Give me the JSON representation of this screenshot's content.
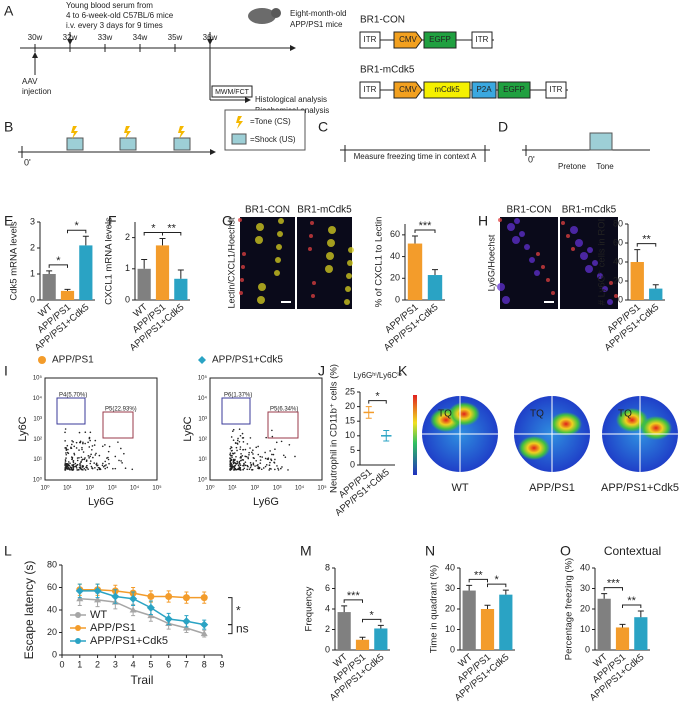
{
  "panel_labels": [
    "A",
    "B",
    "C",
    "D",
    "E",
    "F",
    "G",
    "H",
    "I",
    "J",
    "K",
    "L",
    "M",
    "N",
    "O"
  ],
  "timeline": {
    "serum": [
      "Young blood serum from",
      "4 to 6-week-old C57BL/6 mice",
      "i.v. every 3 days for 9 times"
    ],
    "mice": [
      "Eight-month-old",
      "APP/PS1 mice"
    ],
    "weeks": [
      "30w",
      "32w",
      "33w",
      "34w",
      "35w",
      "36w"
    ],
    "aav": [
      "AAV",
      "injection"
    ],
    "test": "MWM/FCT",
    "analysis": [
      "Histological analysis",
      "Biochemical analysis"
    ]
  },
  "constructs": [
    {
      "name": "BR1-CON",
      "parts": [
        "ITR",
        "CMV",
        "EGFP",
        "ITR"
      ]
    },
    {
      "name": "BR1-mCdk5",
      "parts": [
        "ITR",
        "CMV",
        "mCdk5",
        "P2A",
        "EGFP",
        "ITR"
      ]
    }
  ],
  "fear": {
    "start": "0'",
    "legend": [
      "=Tone (CS)",
      "=Shock (US)"
    ],
    "context": "Measure freezing time in context A",
    "phases": [
      "Pretone",
      "Tone"
    ]
  },
  "images": {
    "g": {
      "columns": [
        "BR1-CON",
        "BR1-mCdk5"
      ],
      "stain": "Lectin/CXCL1/Hoechst"
    },
    "h": {
      "columns": [
        "BR1-CON",
        "BR1-mCdk5"
      ],
      "stain": "Ly6G/Hoechst"
    }
  },
  "flow": {
    "legend": [
      "APP/PS1",
      "APP/PS1+Cdk5"
    ],
    "gates": [
      [
        "P4(5.70%)",
        "P5(22.93%)"
      ],
      [
        "P6(1.37%)",
        "P5(6.34%)"
      ]
    ],
    "ylabel": "Ly6C",
    "xlabel": "Ly6G",
    "ticks": [
      "10⁰",
      "10¹",
      "10²",
      "10³",
      "10⁴",
      "10⁵"
    ]
  },
  "maze": {
    "quadrant": "TQ",
    "groups": [
      "WT",
      "APP/PS1",
      "APP/PS1+Cdk5"
    ]
  },
  "chart_data": [
    {
      "type": "bar",
      "ylabel": "Cdk5 mRNA levels",
      "categories": [
        "WT",
        "APP/PS1",
        "APP/PS1+Cdk5"
      ],
      "values": [
        1.0,
        0.35,
        2.1
      ],
      "errors": [
        0.12,
        0.06,
        0.35
      ],
      "colors": [
        "#808080",
        "#f39c2b",
        "#2aa3c4"
      ],
      "ylim": [
        0,
        3
      ],
      "yticks": [
        0,
        1,
        2,
        3
      ],
      "significance": [
        "*",
        "*"
      ]
    },
    {
      "type": "bar",
      "ylabel": "CXCL1 mRNA levels",
      "categories": [
        "WT",
        "APP/PS1",
        "APP/PS1+Cdk5"
      ],
      "values": [
        1.0,
        1.75,
        0.68
      ],
      "errors": [
        0.3,
        0.22,
        0.28
      ],
      "colors": [
        "#808080",
        "#f39c2b",
        "#2aa3c4"
      ],
      "ylim": [
        0,
        2.5
      ],
      "yticks": [
        0,
        1,
        2
      ],
      "significance": [
        "*",
        "**"
      ]
    },
    {
      "type": "bar",
      "ylabel": "% of CXCL1 to Lectin",
      "categories": [
        "APP/PS1",
        "APP/PS1+Cdk5"
      ],
      "values": [
        52,
        23
      ],
      "errors": [
        7,
        5
      ],
      "colors": [
        "#f39c2b",
        "#2aa3c4"
      ],
      "ylim": [
        0,
        70
      ],
      "yticks": [
        0,
        20,
        40,
        60
      ],
      "significance": [
        "***"
      ]
    },
    {
      "type": "bar",
      "ylabel": "# Ly6G⁺ cells in ROI",
      "categories": [
        "APP/PS1",
        "APP/PS1+Cdk5"
      ],
      "values": [
        40,
        12
      ],
      "errors": [
        13,
        4
      ],
      "colors": [
        "#f39c2b",
        "#2aa3c4"
      ],
      "ylim": [
        0,
        80
      ],
      "yticks": [
        0,
        20,
        40,
        60,
        80
      ],
      "significance": [
        "**"
      ]
    },
    {
      "type": "dot",
      "title": "Ly6Gʰⁱ/Ly6Cˡᵒ",
      "ylabel": "Neutrophil in CD11b⁺ cells (%)",
      "categories": [
        "APP/PS1",
        "APP/PS1+Cdk5"
      ],
      "values": [
        18,
        10
      ],
      "errors": [
        2,
        1.8
      ],
      "colors": [
        "#f39c2b",
        "#2aa3c4"
      ],
      "ylim": [
        0,
        25
      ],
      "yticks": [
        0,
        5,
        10,
        15,
        20,
        25
      ],
      "significance": [
        "*"
      ]
    },
    {
      "type": "line",
      "ylabel": "Escape latency (s)",
      "xlabel": "Trail",
      "x": [
        1,
        2,
        3,
        4,
        5,
        6,
        7,
        8
      ],
      "xlim": [
        0,
        9
      ],
      "xticks": [
        0,
        1,
        2,
        3,
        4,
        5,
        6,
        7,
        8,
        9
      ],
      "ylim": [
        0,
        80
      ],
      "yticks": [
        0,
        20,
        40,
        60,
        80
      ],
      "series": [
        {
          "name": "WT",
          "color": "#a6a6a6",
          "values": [
            50,
            49,
            47,
            40,
            35,
            28,
            24,
            19
          ],
          "errors": [
            6,
            6,
            6,
            5,
            5,
            5,
            4,
            3
          ]
        },
        {
          "name": "APP/PS1",
          "color": "#f39c2b",
          "values": [
            58,
            58,
            57,
            55,
            52,
            52,
            51,
            51
          ],
          "errors": [
            5,
            5,
            5,
            5,
            5,
            5,
            5,
            5
          ]
        },
        {
          "name": "APP/PS1+Cdk5",
          "color": "#2aa3c4",
          "values": [
            57,
            57,
            52,
            50,
            42,
            32,
            30,
            27
          ],
          "errors": [
            6,
            6,
            6,
            6,
            6,
            5,
            5,
            4
          ]
        }
      ],
      "significance": [
        "*",
        "ns"
      ]
    },
    {
      "type": "bar",
      "ylabel": "Frequency",
      "categories": [
        "WT",
        "APP/PS1",
        "APP/PS1+Cdk5"
      ],
      "values": [
        3.7,
        1.0,
        2.1
      ],
      "errors": [
        0.6,
        0.25,
        0.3
      ],
      "colors": [
        "#808080",
        "#f39c2b",
        "#2aa3c4"
      ],
      "ylim": [
        0,
        8
      ],
      "yticks": [
        0,
        2,
        4,
        6,
        8
      ],
      "significance": [
        "***",
        "*"
      ]
    },
    {
      "type": "bar",
      "ylabel": "Time in quadrant (%)",
      "categories": [
        "WT",
        "APP/PS1",
        "APP/PS1+Cdk5"
      ],
      "values": [
        29,
        20,
        27
      ],
      "errors": [
        2.5,
        1.8,
        2.2
      ],
      "colors": [
        "#808080",
        "#f39c2b",
        "#2aa3c4"
      ],
      "ylim": [
        0,
        40
      ],
      "yticks": [
        0,
        10,
        20,
        30,
        40
      ],
      "significance": [
        "**",
        "*"
      ]
    },
    {
      "type": "bar",
      "title": "Contextual",
      "ylabel": "Percentage freezing (%)",
      "categories": [
        "WT",
        "APP/PS1",
        "APP/PS1+Cdk5"
      ],
      "values": [
        25,
        11,
        16
      ],
      "errors": [
        2.5,
        1.5,
        3
      ],
      "colors": [
        "#808080",
        "#f39c2b",
        "#2aa3c4"
      ],
      "ylim": [
        0,
        40
      ],
      "yticks": [
        0,
        10,
        20,
        30,
        40
      ],
      "significance": [
        "***",
        "**"
      ]
    }
  ]
}
